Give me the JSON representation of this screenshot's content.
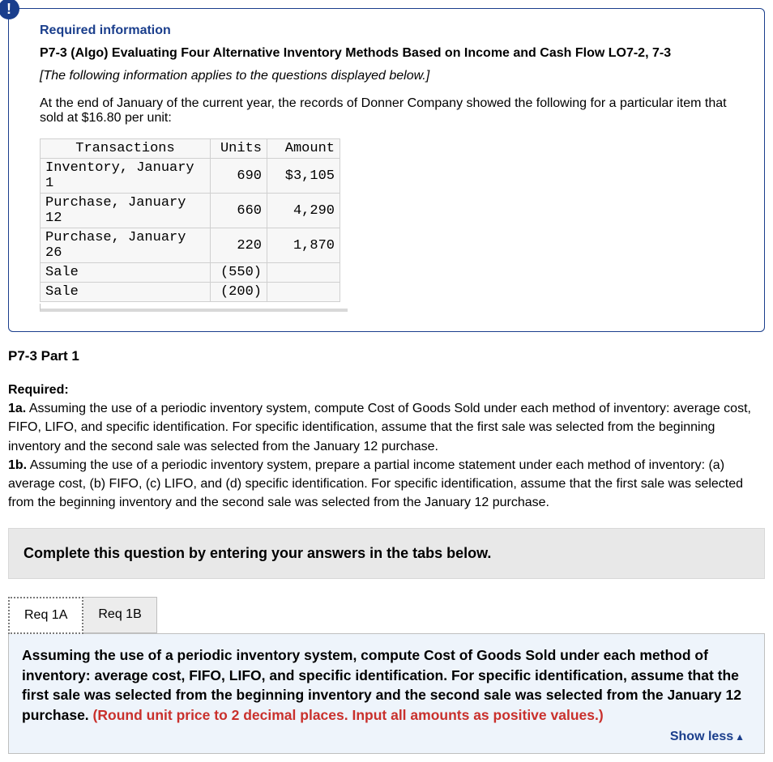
{
  "info_icon": "!",
  "required_header": "Required information",
  "problem_title": "P7-3 (Algo) Evaluating Four Alternative Inventory Methods Based on Income and Cash Flow LO7-2, 7-3",
  "italic_note": "[The following information applies to the questions displayed below.]",
  "intro_text": "At the end of January of the current year, the records of Donner Company showed the following for a particular item that sold at $16.80 per unit:",
  "table": {
    "headers": [
      "Transactions",
      "Units",
      "Amount"
    ],
    "rows": [
      [
        "Inventory, January 1",
        "690",
        "$3,105"
      ],
      [
        "Purchase, January 12",
        "660",
        "4,290"
      ],
      [
        "Purchase, January 26",
        "220",
        "1,870"
      ],
      [
        "Sale",
        "(550)",
        ""
      ],
      [
        "Sale",
        "(200)",
        ""
      ]
    ]
  },
  "part_label": "P7-3 Part 1",
  "required_label": "Required:",
  "req_1a_label": "1a.",
  "req_1a_text": " Assuming the use of a periodic inventory system, compute Cost of Goods Sold under each method of inventory: average cost, FIFO, LIFO, and specific identification. For specific identification, assume that the first sale was selected from the beginning inventory and the second sale was selected from the January 12 purchase.",
  "req_1b_label": "1b.",
  "req_1b_text": " Assuming the use of a periodic inventory system, prepare a partial income statement under each method of inventory: (a) average cost, (b) FIFO, (c) LIFO, and (d) specific identification. For specific identification, assume that the first sale was selected from the beginning inventory and the second sale was selected from the January 12 purchase.",
  "instruction_bar": "Complete this question by entering your answers in the tabs below.",
  "tabs": {
    "tab_a": "Req 1A",
    "tab_b": "Req 1B"
  },
  "tab_content_main": "Assuming the use of a periodic inventory system, compute Cost of Goods Sold under each method of inventory: average cost, FIFO, LIFO, and specific identification. For specific identification, assume that the first sale was selected from the beginning inventory and the second sale was selected from the January 12 purchase. ",
  "tab_content_hint": "(Round unit price to 2 decimal places. Input all amounts as positive values.)",
  "show_less": "Show less",
  "colors": {
    "brand": "#1a3e8c",
    "hint": "#c9302c",
    "tab_bg_active": "#ffffff",
    "tab_bg_inactive": "#ececec",
    "content_bg": "#eef4fb",
    "bar_bg": "#e8e8e8"
  }
}
